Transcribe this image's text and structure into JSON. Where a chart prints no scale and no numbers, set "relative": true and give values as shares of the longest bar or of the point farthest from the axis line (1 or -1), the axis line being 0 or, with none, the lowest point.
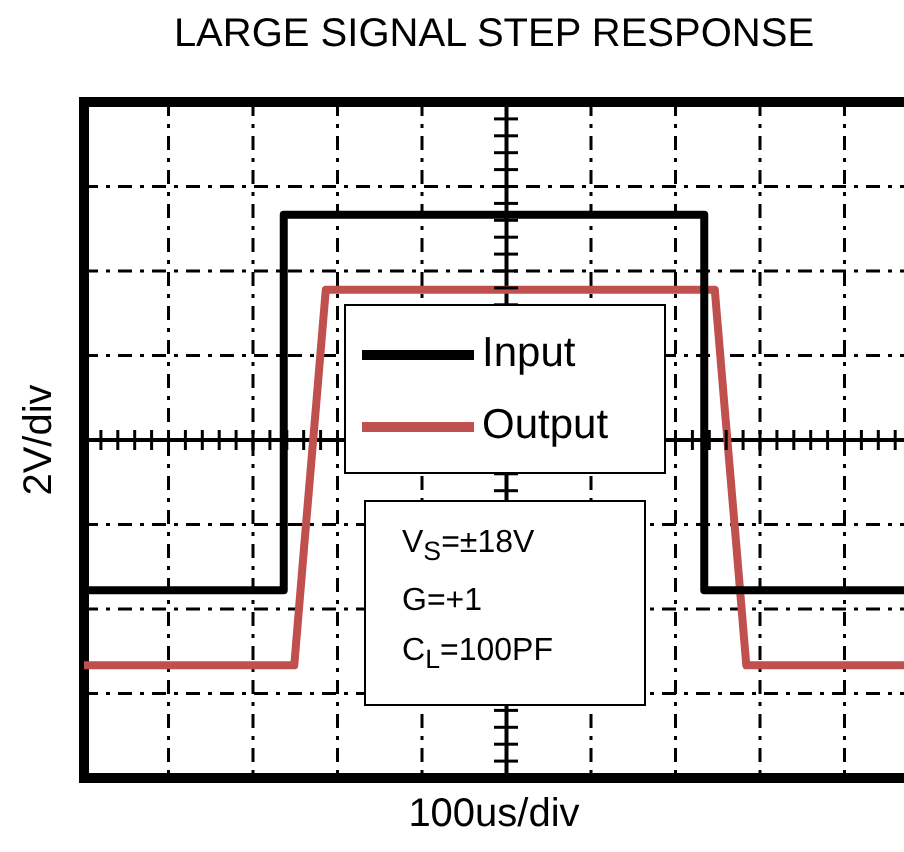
{
  "chart_data": {
    "type": "line",
    "title": "LARGE SIGNAL STEP RESPONSE",
    "xlabel": "100us/div",
    "ylabel": "2V/div",
    "relative": true,
    "grid": true,
    "legend": "center",
    "line_style": "solid",
    "categories": [
      null,
      null,
      null,
      null,
      null,
      null,
      null,
      null,
      null,
      null,
      null,
      null,
      null,
      null,
      null,
      null,
      null,
      null,
      null,
      null,
      null,
      null,
      null,
      null,
      null,
      null,
      null,
      null,
      null,
      null,
      null,
      null,
      null,
      null,
      null,
      null,
      null,
      null,
      null,
      null,
      null,
      null,
      null,
      null,
      null,
      null,
      null,
      null,
      null,
      null,
      null,
      null,
      null,
      null,
      null,
      null,
      null,
      null,
      null,
      null,
      null,
      null,
      null,
      null,
      null,
      null,
      null,
      null,
      null,
      null,
      null,
      null,
      null,
      null,
      null,
      null,
      null,
      null,
      null
    ],
    "series": [
      {
        "name": "Input",
        "type": "step",
        "color": "#000000",
        "values": [
          -0.667,
          -0.667,
          -0.667,
          -0.667,
          -0.667,
          -0.667,
          -0.667,
          -0.667,
          -0.667,
          -0.667,
          -0.667,
          -0.667,
          -0.667,
          -0.667,
          -0.667,
          -0.667,
          -0.667,
          -0.667,
          -0.667,
          -0.667,
          1,
          1,
          1,
          1,
          1,
          1,
          1,
          1,
          1,
          1,
          1,
          1,
          1,
          1,
          1,
          1,
          1,
          1,
          1,
          1,
          1,
          1,
          1,
          1,
          1,
          1,
          1,
          1,
          1,
          1,
          1,
          1,
          1,
          1,
          1,
          1,
          1,
          1,
          1,
          1,
          -0.667,
          -0.667,
          -0.667,
          -0.667,
          -0.667,
          -0.667,
          -0.667,
          -0.667,
          -0.667,
          -0.667,
          -0.667,
          -0.667,
          -0.667,
          -0.667,
          -0.667,
          -0.667,
          -0.667,
          -0.667,
          -0.667
        ]
      },
      {
        "name": "Output",
        "type": "line",
        "color": "#c0504d",
        "values": [
          -1,
          -1,
          -1,
          -1,
          -1,
          -1,
          -1,
          -1,
          -1,
          -1,
          -1,
          -1,
          -1,
          -1,
          -1,
          -1,
          -1,
          -1,
          -1,
          -1,
          -1,
          -0.44,
          0.11,
          0.667,
          0.667,
          0.667,
          0.667,
          0.667,
          0.667,
          0.667,
          0.667,
          0.667,
          0.667,
          0.667,
          0.667,
          0.667,
          0.667,
          0.667,
          0.667,
          0.667,
          0.667,
          0.667,
          0.667,
          0.667,
          0.667,
          0.667,
          0.667,
          0.667,
          0.667,
          0.667,
          0.667,
          0.667,
          0.667,
          0.667,
          0.667,
          0.667,
          0.667,
          0.667,
          0.667,
          0.667,
          0.667,
          0.11,
          -0.44,
          -1,
          -1,
          -1,
          -1,
          -1,
          -1,
          -1,
          -1,
          -1,
          -1,
          -1,
          -1,
          -1,
          -1,
          -1,
          -1
        ]
      }
    ],
    "annotations": [
      "V$_{S}$=±18V",
      "G=+1",
      "C$_{L}$=100PF"
    ]
  }
}
